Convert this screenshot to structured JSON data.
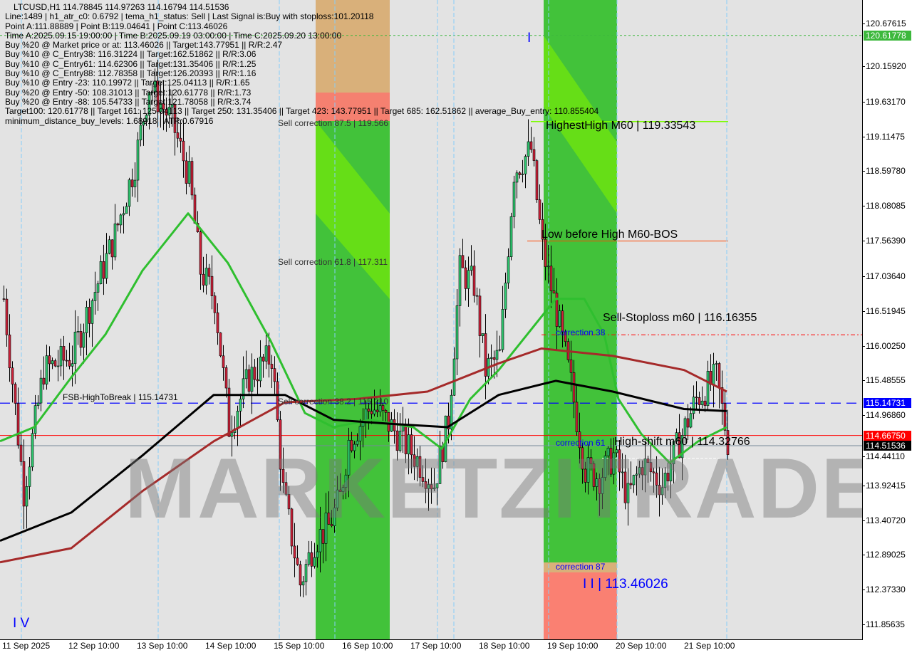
{
  "symbol_line": "LTCUSD,H1  114.78845 114.97263 114.16794 114.51536",
  "info_lines": [
    "Line:1489 | h1_atr_c0: 0.6792 | tema_h1_status: Sell | Last Signal is:Buy with stoploss:101.20118",
    "Point A:111.88889 | Point B:119.04641 | Point C:113.46026",
    "Time A:2025.09.15 19:00:00 | Time B:2025.09.19 03:00:00 | Time C:2025.09.20 13:00:00",
    "Buy %20 @ Market price or at: 113.46026 || Target:143.77951 || R/R:2.47",
    "Buy %10 @ C_Entry38: 116.31224 || Target:162.51862 || R/R:3.06",
    "Buy %10 @ C_Entry61: 114.62306 || Target:131.35406 || R/R:1.25",
    "Buy %10 @ C_Entry88: 112.78358 || Target:126.20393 || R/R:1.16",
    "Buy %10 @ Entry -23: 110.19972 || Target:125.04113 || R/R:1.65",
    "Buy %20 @ Entry -50: 108.31013 || Target:120.61778 || R/R:1.73",
    "Buy %20 @ Entry -88: 105.54733 || Target:121.78058 || R/R:3.74",
    "Target100: 120.61778 || Target 161: 125.04113 || Target 250: 131.35406 || Target 423: 143.77951 || Target 685: 162.51862 || average_Buy_entry: 110.855404",
    "minimum_distance_buy_levels: 1.68918 | ATR:0.67916"
  ],
  "annotations": {
    "sell_corr_875": "Sell correction 87.5 | 119.566",
    "sell_corr_618": "Sell correction 61.8 | 117.311",
    "sell_corr_382": "Sell correction 38.2 | 115.210",
    "highest_high": "HighestHigh   M60 | 119.33543",
    "low_before_high": "Low before High   M60-BOS",
    "sell_stoploss": "Sell-Stoploss m60 | 116.16355",
    "high_shift": "High-shift m60 | 114.32766",
    "fsb": "FSB-HighToBreak | 115.14731",
    "correction38": "correction 38",
    "correction61": "correction 61",
    "correction87": "correction 87",
    "wave_label": "I I | 113.46026",
    "wave_I": "I",
    "wave_IV": "I V",
    "watermark": "MARKETZITRADE"
  },
  "colors": {
    "bull": "#2ecc71",
    "bear": "#d0213a",
    "ma_fast": "#2fbf2f",
    "ma_mid": "#000000",
    "ma_slow": "#a52a2a",
    "fsb_line": "#0000ff",
    "bid_line": "#ff0000",
    "zone_green": "#3fc23f",
    "zone_red": "#fa8072"
  },
  "chart_data": {
    "type": "candlestick",
    "title": "LTCUSD,H1",
    "ylim": [
      111.6,
      120.9
    ],
    "y_ticks": [
      "120.67615",
      "120.15920",
      "119.63170",
      "119.11475",
      "118.59780",
      "118.08085",
      "117.56390",
      "117.03640",
      "116.51945",
      "116.00250",
      "115.48555",
      "114.96860",
      "114.44110",
      "113.92415",
      "113.40720",
      "112.89025",
      "112.37330",
      "111.85635"
    ],
    "x_ticks": [
      "11 Sep 2025",
      "12 Sep 10:00",
      "13 Sep 10:00",
      "14 Sep 10:00",
      "15 Sep 10:00",
      "16 Sep 10:00",
      "17 Sep 10:00",
      "18 Sep 10:00",
      "19 Sep 10:00",
      "20 Sep 10:00",
      "21 Sep 10:00"
    ],
    "price_tags": [
      {
        "value": "120.61778",
        "price": 120.61778,
        "color": "#3cb83c"
      },
      {
        "value": "115.14731",
        "price": 115.14731,
        "color": "#0000ff"
      },
      {
        "value": "114.66750",
        "price": 114.6675,
        "color": "#ff0000"
      },
      {
        "value": "114.51536",
        "price": 114.51536,
        "color": "#000000"
      }
    ],
    "price_path": [
      [
        "2025-09-11T01:00",
        116.7
      ],
      [
        "2025-09-11T08:00",
        113.84
      ],
      [
        "2025-09-11T15:00",
        115.64
      ],
      [
        "2025-09-12T01:00",
        115.85
      ],
      [
        "2025-09-12T08:00",
        116.7
      ],
      [
        "2025-09-12T16:00",
        117.65
      ],
      [
        "2025-09-12T23:00",
        118.71
      ],
      [
        "2025-09-13T04:00",
        119.87
      ],
      [
        "2025-09-13T12:00",
        119.34
      ],
      [
        "2025-09-13T18:00",
        118.5
      ],
      [
        "2025-09-13T22:00",
        117.12
      ],
      [
        "2025-09-14T03:00",
        116.7
      ],
      [
        "2025-09-14T08:00",
        114.79
      ],
      [
        "2025-09-14T15:00",
        115.53
      ],
      [
        "2025-09-14T23:00",
        115.85
      ],
      [
        "2025-09-15T03:00",
        113.84
      ],
      [
        "2025-09-15T09:00",
        112.46
      ],
      [
        "2025-09-15T14:00",
        113.1
      ],
      [
        "2025-09-15T19:00",
        113.31
      ],
      [
        "2025-09-15T23:00",
        113.74
      ],
      [
        "2025-09-16T02:00",
        114.58
      ],
      [
        "2025-09-16T10:00",
        115.11
      ],
      [
        "2025-09-16T17:00",
        114.79
      ],
      [
        "2025-09-17T01:00",
        114.37
      ],
      [
        "2025-09-17T08:00",
        113.94
      ],
      [
        "2025-09-17T13:00",
        114.9
      ],
      [
        "2025-09-17T17:00",
        117.12
      ],
      [
        "2025-09-17T22:00",
        116.91
      ],
      [
        "2025-09-18T02:00",
        115.64
      ],
      [
        "2025-09-18T07:00",
        115.85
      ],
      [
        "2025-09-18T12:00",
        118.6
      ],
      [
        "2025-09-18T18:00",
        118.92
      ],
      [
        "2025-09-18T22:00",
        117.44
      ],
      [
        "2025-09-19T03:00",
        116.49
      ],
      [
        "2025-09-19T08:00",
        115.43
      ],
      [
        "2025-09-19T13:00",
        114.16
      ],
      [
        "2025-09-19T18:00",
        114.05
      ],
      [
        "2025-09-19T23:00",
        114.37
      ],
      [
        "2025-09-20T04:00",
        113.74
      ],
      [
        "2025-09-20T09:00",
        114.26
      ],
      [
        "2025-09-20T16:00",
        113.94
      ],
      [
        "2025-09-21T00:00",
        114.79
      ],
      [
        "2025-09-21T04:00",
        115.21
      ],
      [
        "2025-09-21T11:00",
        115.53
      ],
      [
        "2025-09-21T15:00",
        114.58
      ]
    ],
    "series": [
      {
        "color": "#2fbf2f",
        "points": [
          [
            "2025-09-11T00:00",
            114.58
          ],
          [
            "2025-09-11T12:00",
            114.79
          ],
          [
            "2025-09-12T01:00",
            115.53
          ],
          [
            "2025-09-12T13:00",
            116.17
          ],
          [
            "2025-09-13T02:00",
            117.12
          ],
          [
            "2025-09-13T18:00",
            117.97
          ],
          [
            "2025-09-14T08:00",
            117.23
          ],
          [
            "2025-09-14T23:00",
            116.07
          ],
          [
            "2025-09-15T11:00",
            115.0
          ],
          [
            "2025-09-15T21:00",
            114.79
          ],
          [
            "2025-09-16T10:00",
            114.9
          ],
          [
            "2025-09-17T01:00",
            114.79
          ],
          [
            "2025-09-17T11:00",
            114.47
          ],
          [
            "2025-09-17T21:00",
            115.21
          ],
          [
            "2025-09-18T07:00",
            115.64
          ],
          [
            "2025-09-18T17:00",
            116.17
          ],
          [
            "2025-09-19T03:00",
            116.7
          ],
          [
            "2025-09-19T13:00",
            116.7
          ],
          [
            "2025-09-19T20:00",
            116.17
          ],
          [
            "2025-09-20T01:00",
            115.21
          ],
          [
            "2025-09-20T09:00",
            114.69
          ],
          [
            "2025-09-20T19:00",
            114.26
          ],
          [
            "2025-09-21T05:00",
            114.58
          ],
          [
            "2025-09-21T15:00",
            114.79
          ]
        ]
      },
      {
        "color": "#000000",
        "points": [
          [
            "2025-09-11T00:00",
            113.1
          ],
          [
            "2025-09-12T01:00",
            113.52
          ],
          [
            "2025-09-13T02:00",
            114.37
          ],
          [
            "2025-09-14T03:00",
            115.27
          ],
          [
            "2025-09-15T04:00",
            115.27
          ],
          [
            "2025-09-15T21:00",
            114.9
          ],
          [
            "2025-09-16T17:00",
            114.84
          ],
          [
            "2025-09-17T13:00",
            114.79
          ],
          [
            "2025-09-18T07:00",
            115.27
          ],
          [
            "2025-09-19T03:00",
            115.48
          ],
          [
            "2025-09-19T23:00",
            115.32
          ],
          [
            "2025-09-21T00:00",
            115.06
          ],
          [
            "2025-09-21T15:00",
            115.03
          ]
        ]
      },
      {
        "color": "#a52a2a",
        "points": [
          [
            "2025-09-11T00:00",
            112.78
          ],
          [
            "2025-09-12T01:00",
            112.99
          ],
          [
            "2025-09-13T02:00",
            113.84
          ],
          [
            "2025-09-14T03:00",
            114.58
          ],
          [
            "2025-09-15T04:00",
            115.16
          ],
          [
            "2025-09-16T05:00",
            115.21
          ],
          [
            "2025-09-17T06:00",
            115.32
          ],
          [
            "2025-09-18T07:00",
            115.74
          ],
          [
            "2025-09-18T22:00",
            115.96
          ],
          [
            "2025-09-19T23:00",
            115.85
          ],
          [
            "2025-09-21T00:00",
            115.64
          ],
          [
            "2025-09-21T15:00",
            115.32
          ]
        ]
      }
    ],
    "levels": [
      {
        "name": "target100",
        "price": 120.61778
      },
      {
        "name": "fsb-high-to-break",
        "price": 115.14731
      },
      {
        "name": "bid",
        "price": 114.6675
      },
      {
        "name": "last",
        "price": 114.51536
      },
      {
        "name": "sell-stoploss",
        "price": 116.16355
      },
      {
        "name": "highest-high",
        "price": 119.33543
      },
      {
        "name": "low-before-high",
        "price": 117.56
      },
      {
        "name": "high-shift",
        "price": 114.32766
      }
    ]
  }
}
